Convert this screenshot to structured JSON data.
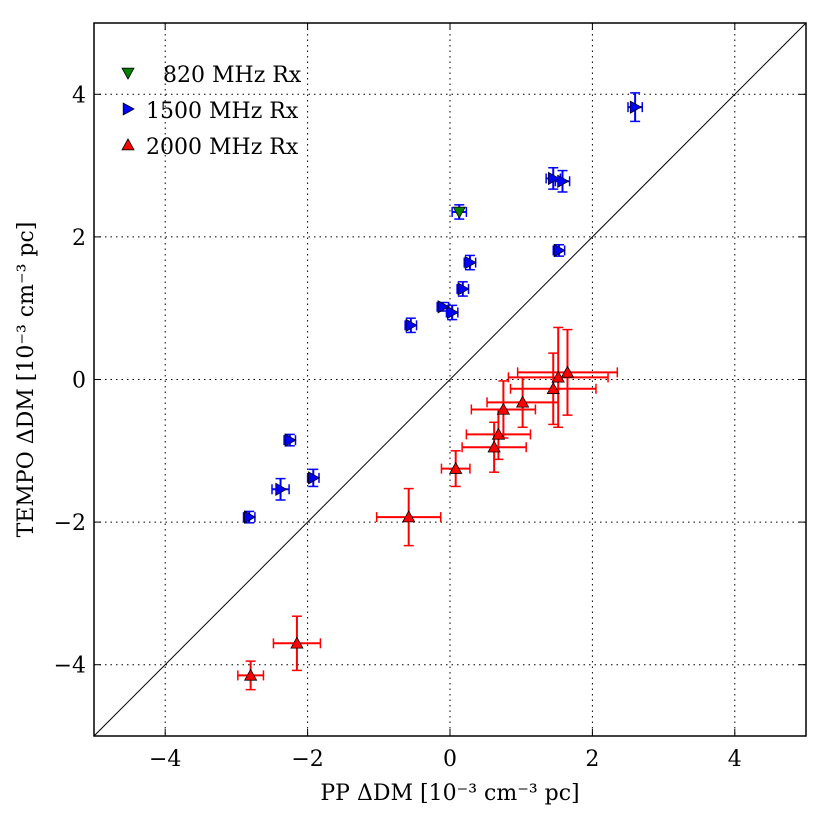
{
  "chart_data": {
    "type": "scatter",
    "xlabel": "PP ΔDM [10⁻³ cm⁻³ pc]",
    "ylabel": "TEMPO ΔDM [10⁻³ cm⁻³ pc]",
    "xlim": [
      -5,
      5
    ],
    "ylim": [
      -5,
      5
    ],
    "xticks": [
      -4,
      -2,
      0,
      2,
      4
    ],
    "yticks": [
      -4,
      -2,
      0,
      2,
      4
    ],
    "xtick_labels": [
      "−4",
      "−2",
      "0",
      "2",
      "4"
    ],
    "ytick_labels": [
      "−4",
      "−2",
      "0",
      "2",
      "4"
    ],
    "grid": true,
    "reference_line": "y = x",
    "legend_position": "top-left",
    "series": [
      {
        "name": "820 MHz Rx",
        "legend_label": "820 MHz Rx",
        "marker": "triangle-down",
        "color": "#008000",
        "errcolor": "#0000ff",
        "points": [
          {
            "x": 0.13,
            "y": 2.35,
            "xerr": 0.1,
            "yerr": 0.1
          }
        ]
      },
      {
        "name": "1500 MHz Rx",
        "legend_label": "1500 MHz Rx",
        "marker": "triangle-right",
        "color": "#0000ff",
        "errcolor": "#0000ff",
        "points": [
          {
            "x": 2.6,
            "y": 3.82,
            "xerr": 0.1,
            "yerr": 0.2
          },
          {
            "x": 1.45,
            "y": 2.82,
            "xerr": 0.1,
            "yerr": 0.15
          },
          {
            "x": 1.58,
            "y": 2.78,
            "xerr": 0.1,
            "yerr": 0.15
          },
          {
            "x": 1.53,
            "y": 1.81,
            "xerr": 0.08,
            "yerr": 0.08
          },
          {
            "x": 0.28,
            "y": 1.64,
            "xerr": 0.08,
            "yerr": 0.1
          },
          {
            "x": 0.18,
            "y": 1.27,
            "xerr": 0.08,
            "yerr": 0.1
          },
          {
            "x": -0.1,
            "y": 1.02,
            "xerr": 0.08,
            "yerr": 0.06
          },
          {
            "x": 0.03,
            "y": 0.94,
            "xerr": 0.08,
            "yerr": 0.1
          },
          {
            "x": -0.55,
            "y": 0.76,
            "xerr": 0.08,
            "yerr": 0.1
          },
          {
            "x": -2.25,
            "y": -0.85,
            "xerr": 0.08,
            "yerr": 0.08
          },
          {
            "x": -1.92,
            "y": -1.38,
            "xerr": 0.08,
            "yerr": 0.12
          },
          {
            "x": -2.38,
            "y": -1.54,
            "xerr": 0.12,
            "yerr": 0.15
          },
          {
            "x": -2.82,
            "y": -1.93,
            "xerr": 0.08,
            "yerr": 0.08
          }
        ]
      },
      {
        "name": "2000 MHz Rx",
        "legend_label": "2000 MHz Rx",
        "marker": "triangle-up",
        "color": "#ff0000",
        "errcolor": "#ff0000",
        "points": [
          {
            "x": 1.65,
            "y": 0.1,
            "xerr": 0.7,
            "yerr": 0.6
          },
          {
            "x": 1.52,
            "y": 0.03,
            "xerr": 0.7,
            "yerr": 0.7
          },
          {
            "x": 1.45,
            "y": -0.13,
            "xerr": 0.6,
            "yerr": 0.5
          },
          {
            "x": 1.02,
            "y": -0.32,
            "xerr": 0.5,
            "yerr": 0.35
          },
          {
            "x": 0.75,
            "y": -0.42,
            "xerr": 0.45,
            "yerr": 0.4
          },
          {
            "x": 0.68,
            "y": -0.77,
            "xerr": 0.45,
            "yerr": 0.35
          },
          {
            "x": 0.62,
            "y": -0.95,
            "xerr": 0.45,
            "yerr": 0.35
          },
          {
            "x": 0.08,
            "y": -1.25,
            "xerr": 0.2,
            "yerr": 0.25
          },
          {
            "x": -0.58,
            "y": -1.93,
            "xerr": 0.45,
            "yerr": 0.4
          },
          {
            "x": -2.15,
            "y": -3.7,
            "xerr": 0.33,
            "yerr": 0.38
          },
          {
            "x": -2.8,
            "y": -4.15,
            "xerr": 0.18,
            "yerr": 0.2
          }
        ]
      }
    ]
  }
}
